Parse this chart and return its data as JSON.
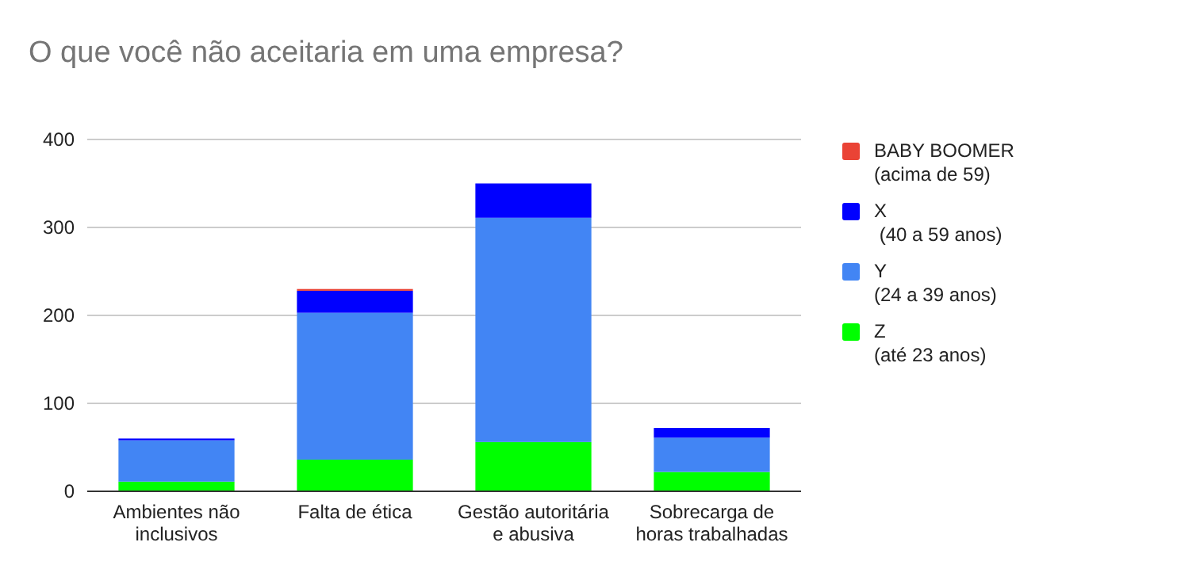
{
  "chart_data": {
    "type": "bar",
    "stacked": true,
    "title": "O que você não aceitaria em uma empresa?",
    "categories": [
      "Ambientes não\ninclusivos",
      "Falta de ética",
      "Gestão autoritária\ne abusiva",
      "Sobrecarga de\nhoras trabalhadas"
    ],
    "series": [
      {
        "name": "Z\n(até 23 anos)",
        "color": "#00ff00",
        "values": [
          11,
          36,
          56,
          22
        ]
      },
      {
        "name": "Y\n(24 a 39 anos)",
        "color": "#4285f4",
        "values": [
          47,
          167,
          255,
          39
        ]
      },
      {
        "name": "X\n (40 a 59 anos)",
        "color": "#0000ff",
        "values": [
          2,
          25,
          39,
          11
        ]
      },
      {
        "name": "BABY BOOMER\n(acima de 59)",
        "color": "#ea4335",
        "values": [
          0,
          2,
          0,
          0
        ]
      }
    ],
    "ylim": [
      0,
      400
    ],
    "yticks": [
      0,
      100,
      200,
      300,
      400
    ],
    "grid": "y",
    "legend": "right"
  }
}
